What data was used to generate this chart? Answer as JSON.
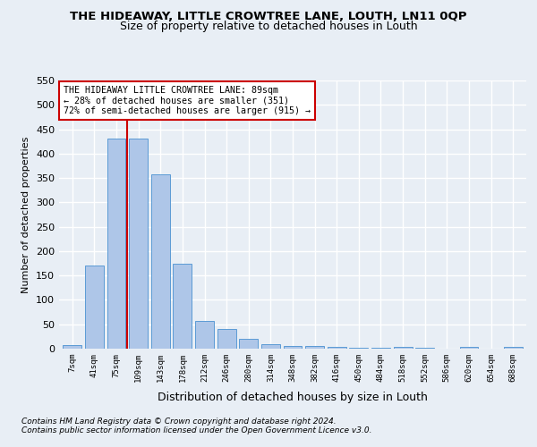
{
  "title": "THE HIDEAWAY, LITTLE CROWTREE LANE, LOUTH, LN11 0QP",
  "subtitle": "Size of property relative to detached houses in Louth",
  "xlabel": "Distribution of detached houses by size in Louth",
  "ylabel": "Number of detached properties",
  "footnote1": "Contains HM Land Registry data © Crown copyright and database right 2024.",
  "footnote2": "Contains public sector information licensed under the Open Government Licence v3.0.",
  "bin_labels": [
    "7sqm",
    "41sqm",
    "75sqm",
    "109sqm",
    "143sqm",
    "178sqm",
    "212sqm",
    "246sqm",
    "280sqm",
    "314sqm",
    "348sqm",
    "382sqm",
    "416sqm",
    "450sqm",
    "484sqm",
    "518sqm",
    "552sqm",
    "586sqm",
    "620sqm",
    "654sqm",
    "688sqm"
  ],
  "bar_values": [
    8,
    170,
    430,
    430,
    358,
    175,
    57,
    40,
    20,
    10,
    5,
    5,
    3,
    2,
    1,
    4,
    1,
    0,
    4,
    0,
    4
  ],
  "bar_color": "#aec6e8",
  "bar_edge_color": "#5b9bd5",
  "red_line_x": 2.5,
  "annotation_line1": "THE HIDEAWAY LITTLE CROWTREE LANE: 89sqm",
  "annotation_line2": "← 28% of detached houses are smaller (351)",
  "annotation_line3": "72% of semi-detached houses are larger (915) →",
  "annotation_box_color": "#ffffff",
  "annotation_box_edge": "#cc0000",
  "red_line_color": "#cc0000",
  "ylim": [
    0,
    550
  ],
  "yticks": [
    0,
    50,
    100,
    150,
    200,
    250,
    300,
    350,
    400,
    450,
    500,
    550
  ],
  "background_color": "#e8eef5",
  "grid_color": "#ffffff",
  "title_fontsize": 9.5,
  "subtitle_fontsize": 9
}
